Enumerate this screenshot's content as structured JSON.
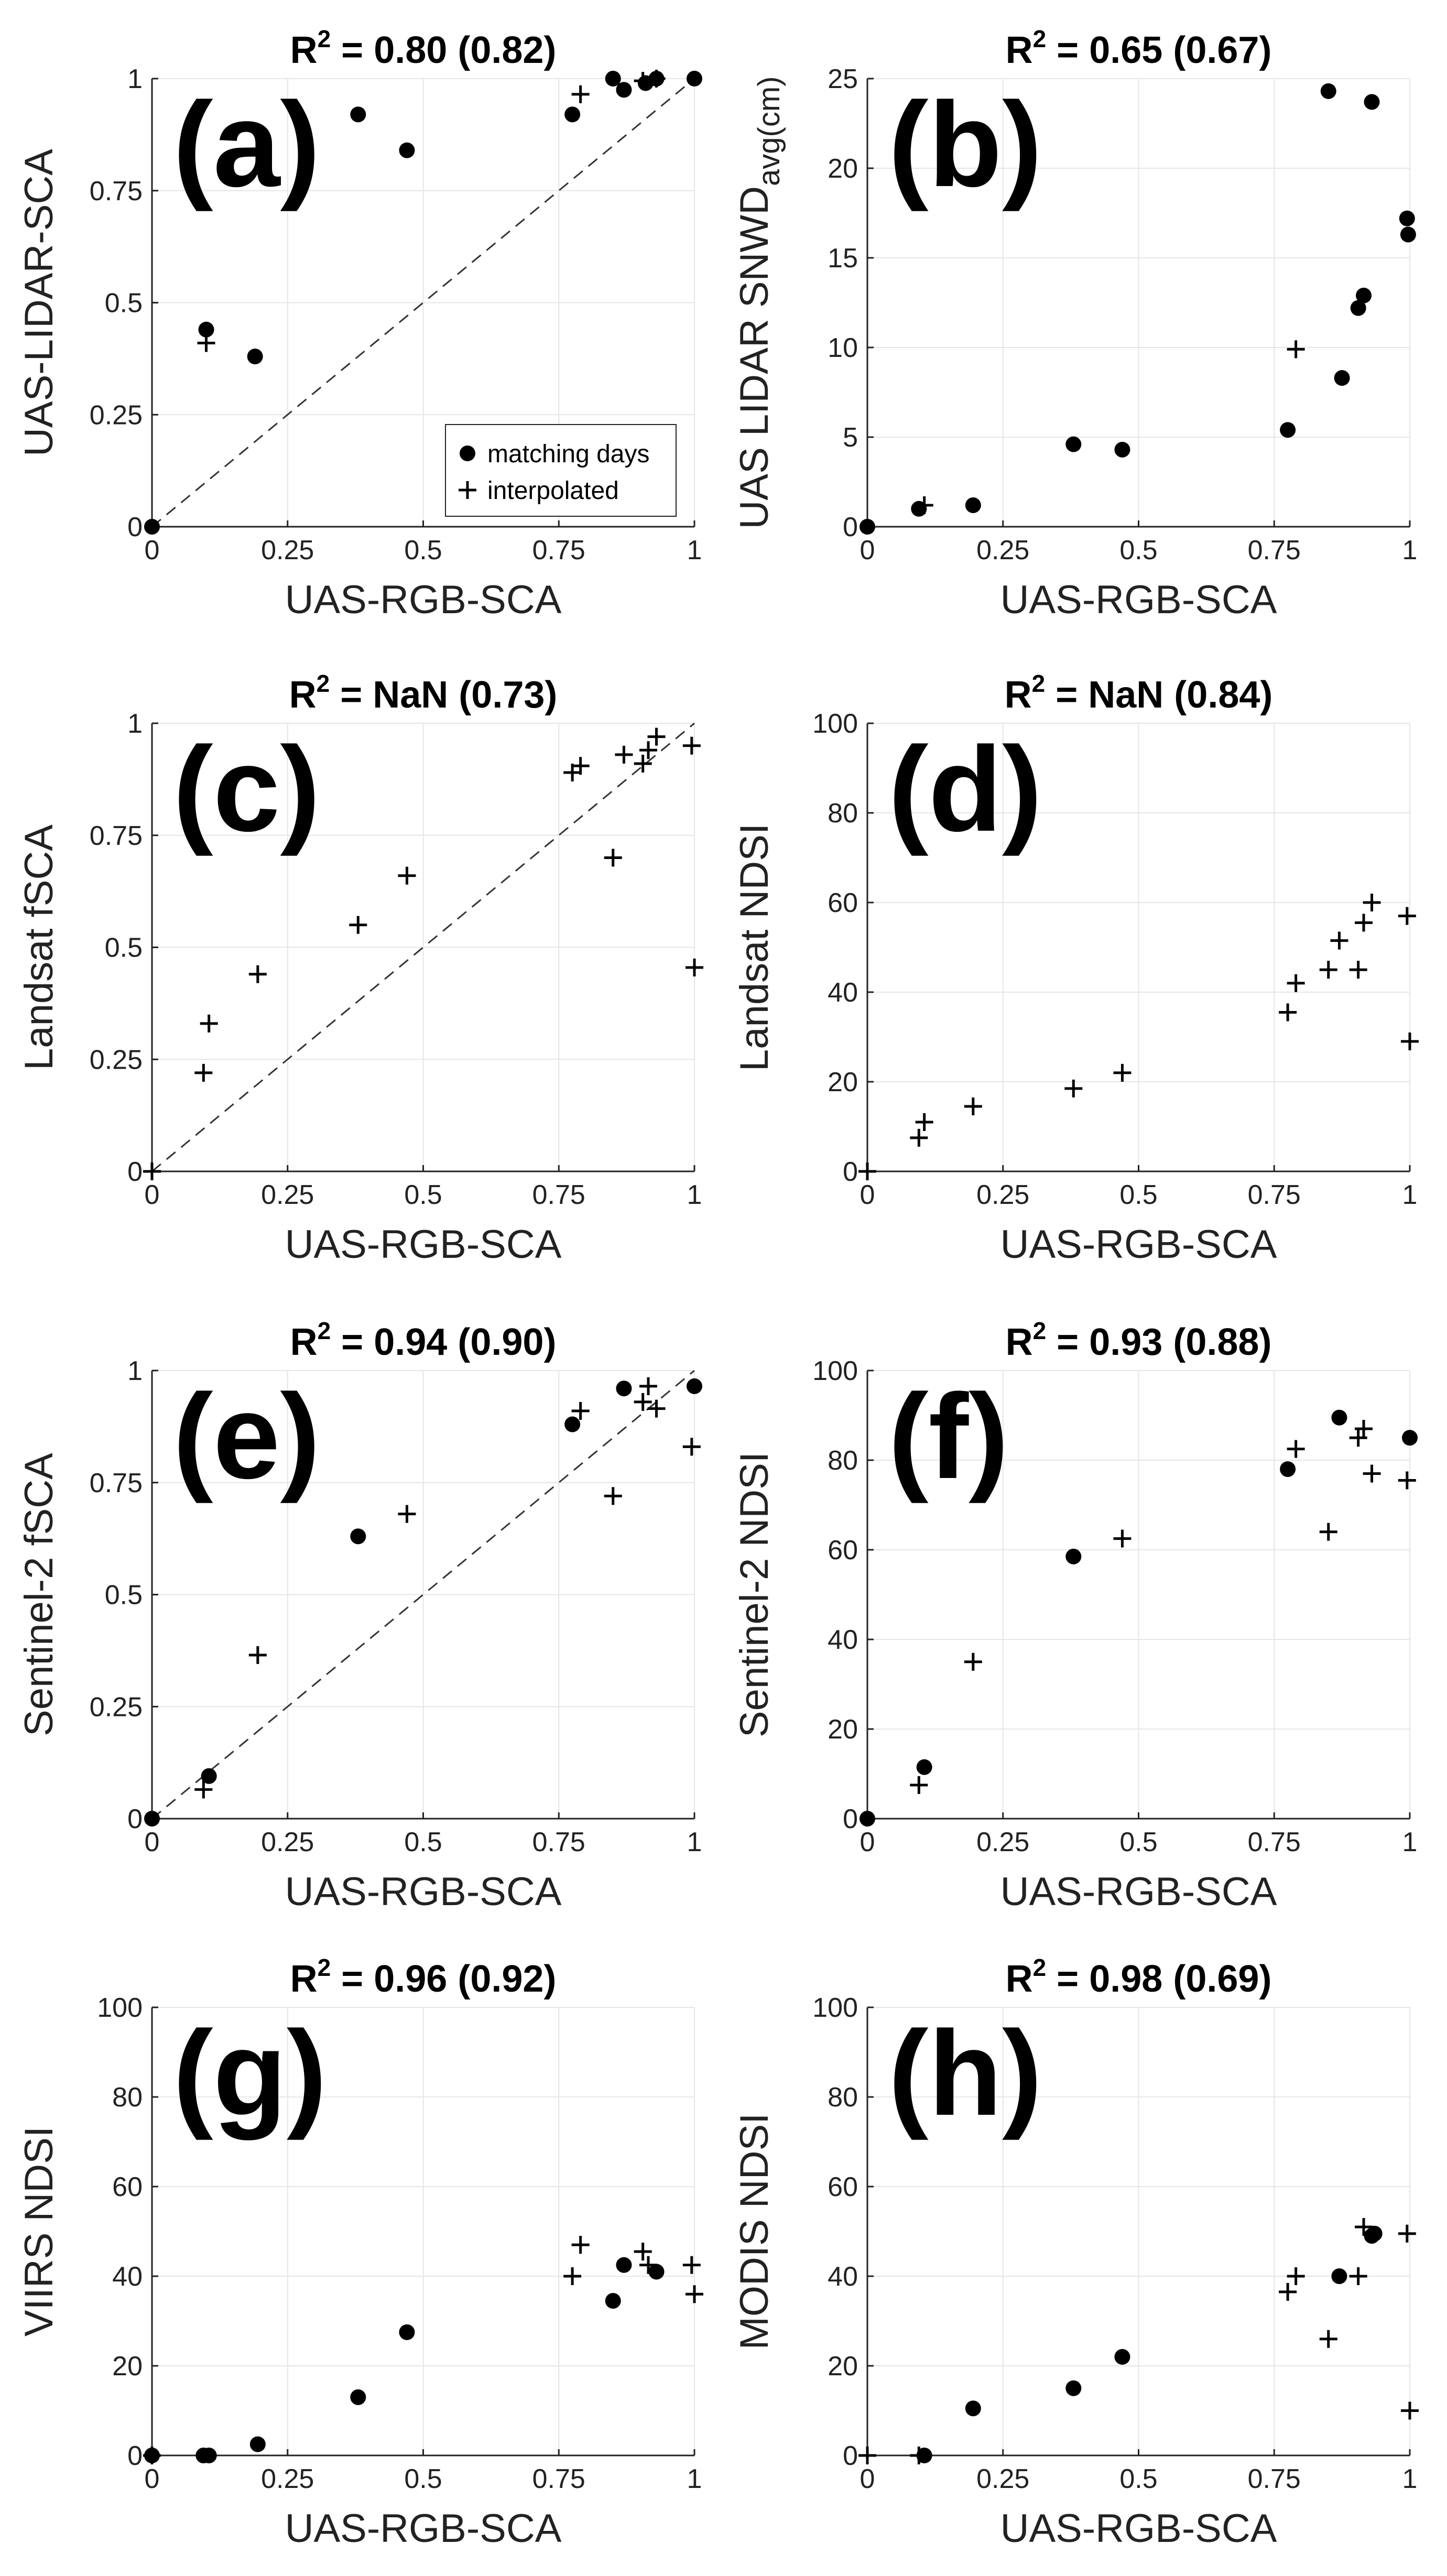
{
  "figure": {
    "legend": {
      "matching": "matching days",
      "interpolated": "interpolated",
      "panel": "a"
    }
  },
  "chart_data": [
    {
      "panel": "a",
      "type": "scatter",
      "letter": "(a)",
      "title_prefix": "R",
      "title_value": " = 0.80 (0.82)",
      "xlabel": "UAS-RGB-SCA",
      "ylabel": "UAS-LIDAR-SCA",
      "xlim": [
        0,
        1
      ],
      "ylim": [
        0,
        1
      ],
      "xticks": [
        0,
        0.25,
        0.5,
        0.75,
        1
      ],
      "xtick_labels": [
        "0",
        "0.25",
        "0.5",
        "0.75",
        "1"
      ],
      "yticks": [
        0,
        0.25,
        0.5,
        0.75,
        1
      ],
      "ytick_labels": [
        "0",
        "0.25",
        "0.5",
        "0.75",
        "1"
      ],
      "one_to_one": true,
      "series": [
        {
          "name": "matching days",
          "marker": "dot",
          "x": [
            0,
            0.1,
            0.19,
            0.38,
            0.47,
            0.775,
            0.85,
            0.87,
            0.91,
            0.93,
            1.0
          ],
          "y": [
            0,
            0.44,
            0.38,
            0.92,
            0.84,
            0.92,
            1.0,
            0.975,
            0.99,
            1.0,
            1.0
          ]
        },
        {
          "name": "interpolated",
          "marker": "plus",
          "x": [
            0.1,
            0.79,
            0.905,
            0.93
          ],
          "y": [
            0.41,
            0.965,
            0.995,
            1.0
          ]
        }
      ]
    },
    {
      "panel": "b",
      "type": "scatter",
      "letter": "(b)",
      "title_prefix": "R",
      "title_value": " = 0.65 (0.67)",
      "xlabel": "UAS-RGB-SCA",
      "ylabel": "UAS LIDAR SNWD",
      "ylabel_sub": "avg(cm)",
      "xlim": [
        0,
        1
      ],
      "ylim": [
        0,
        25
      ],
      "xticks": [
        0,
        0.25,
        0.5,
        0.75,
        1
      ],
      "xtick_labels": [
        "0",
        "0.25",
        "0.5",
        "0.75",
        "1"
      ],
      "yticks": [
        0,
        5,
        10,
        15,
        20,
        25
      ],
      "ytick_labels": [
        "0",
        "5",
        "10",
        "15",
        "20",
        "25"
      ],
      "one_to_one": false,
      "series": [
        {
          "name": "matching days",
          "marker": "dot",
          "x": [
            0,
            0.095,
            0.195,
            0.38,
            0.47,
            0.775,
            0.85,
            0.875,
            0.905,
            0.915,
            0.93,
            0.995,
            0.997
          ],
          "y": [
            0,
            1.0,
            1.2,
            4.6,
            4.3,
            5.4,
            24.3,
            8.3,
            12.2,
            12.9,
            23.7,
            17.2,
            16.3
          ]
        },
        {
          "name": "interpolated",
          "marker": "plus",
          "x": [
            0.105,
            0.79
          ],
          "y": [
            1.2,
            9.9
          ]
        }
      ]
    },
    {
      "panel": "c",
      "type": "scatter",
      "letter": "(c)",
      "title_prefix": "R",
      "title_value": " = NaN (0.73)",
      "xlabel": "UAS-RGB-SCA",
      "ylabel": "Landsat fSCA",
      "xlim": [
        0,
        1
      ],
      "ylim": [
        0,
        1
      ],
      "xticks": [
        0,
        0.25,
        0.5,
        0.75,
        1
      ],
      "xtick_labels": [
        "0",
        "0.25",
        "0.5",
        "0.75",
        "1"
      ],
      "yticks": [
        0,
        0.25,
        0.5,
        0.75,
        1
      ],
      "ytick_labels": [
        "0",
        "0.25",
        "0.5",
        "0.75",
        "1"
      ],
      "one_to_one": true,
      "series": [
        {
          "name": "interpolated",
          "marker": "plus",
          "x": [
            0,
            0.095,
            0.105,
            0.195,
            0.38,
            0.47,
            0.775,
            0.79,
            0.85,
            0.87,
            0.905,
            0.915,
            0.93,
            0.995,
            1.0
          ],
          "y": [
            0,
            0.22,
            0.33,
            0.44,
            0.55,
            0.66,
            0.89,
            0.905,
            0.7,
            0.93,
            0.91,
            0.94,
            0.97,
            0.95,
            0.455
          ]
        }
      ]
    },
    {
      "panel": "d",
      "type": "scatter",
      "letter": "(d)",
      "title_prefix": "R",
      "title_value": " = NaN (0.84)",
      "xlabel": "UAS-RGB-SCA",
      "ylabel": "Landsat NDSI",
      "xlim": [
        0,
        1
      ],
      "ylim": [
        0,
        100
      ],
      "xticks": [
        0,
        0.25,
        0.5,
        0.75,
        1
      ],
      "xtick_labels": [
        "0",
        "0.25",
        "0.5",
        "0.75",
        "1"
      ],
      "yticks": [
        0,
        20,
        40,
        60,
        80,
        100
      ],
      "ytick_labels": [
        "0",
        "20",
        "40",
        "60",
        "80",
        "100"
      ],
      "one_to_one": false,
      "series": [
        {
          "name": "interpolated",
          "marker": "plus",
          "x": [
            0,
            0.095,
            0.105,
            0.195,
            0.38,
            0.47,
            0.775,
            0.79,
            0.85,
            0.87,
            0.905,
            0.915,
            0.93,
            0.995,
            1.0
          ],
          "y": [
            0,
            7.5,
            11,
            14.5,
            18.5,
            22,
            35.5,
            42,
            45,
            51.5,
            45,
            55.5,
            60,
            57,
            29
          ]
        }
      ]
    },
    {
      "panel": "e",
      "type": "scatter",
      "letter": "(e)",
      "title_prefix": "R",
      "title_value": " = 0.94 (0.90)",
      "xlabel": "UAS-RGB-SCA",
      "ylabel": "Sentinel-2 fSCA",
      "xlim": [
        0,
        1
      ],
      "ylim": [
        0,
        1
      ],
      "xticks": [
        0,
        0.25,
        0.5,
        0.75,
        1
      ],
      "xtick_labels": [
        "0",
        "0.25",
        "0.5",
        "0.75",
        "1"
      ],
      "yticks": [
        0,
        0.25,
        0.5,
        0.75,
        1
      ],
      "ytick_labels": [
        "0",
        "0.25",
        "0.5",
        "0.75",
        "1"
      ],
      "one_to_one": true,
      "series": [
        {
          "name": "matching days",
          "marker": "dot",
          "x": [
            0,
            0.105,
            0.38,
            0.775,
            0.87,
            1.0
          ],
          "y": [
            0,
            0.095,
            0.63,
            0.88,
            0.96,
            0.965
          ]
        },
        {
          "name": "interpolated",
          "marker": "plus",
          "x": [
            0.095,
            0.195,
            0.47,
            0.79,
            0.85,
            0.905,
            0.915,
            0.93,
            0.995
          ],
          "y": [
            0.065,
            0.365,
            0.68,
            0.91,
            0.72,
            0.93,
            0.965,
            0.915,
            0.83
          ]
        }
      ]
    },
    {
      "panel": "f",
      "type": "scatter",
      "letter": "(f)",
      "title_prefix": "R",
      "title_value": " = 0.93 (0.88)",
      "xlabel": "UAS-RGB-SCA",
      "ylabel": "Sentinel-2 NDSI",
      "xlim": [
        0,
        1
      ],
      "ylim": [
        0,
        100
      ],
      "xticks": [
        0,
        0.25,
        0.5,
        0.75,
        1
      ],
      "xtick_labels": [
        "0",
        "0.25",
        "0.5",
        "0.75",
        "1"
      ],
      "yticks": [
        0,
        20,
        40,
        60,
        80,
        100
      ],
      "ytick_labels": [
        "0",
        "20",
        "40",
        "60",
        "80",
        "100"
      ],
      "one_to_one": false,
      "series": [
        {
          "name": "matching days",
          "marker": "dot",
          "x": [
            0,
            0.105,
            0.38,
            0.775,
            0.87,
            1.0
          ],
          "y": [
            0,
            11.5,
            58.5,
            78,
            89.5,
            85
          ]
        },
        {
          "name": "interpolated",
          "marker": "plus",
          "x": [
            0.095,
            0.195,
            0.47,
            0.79,
            0.85,
            0.905,
            0.915,
            0.93,
            0.995
          ],
          "y": [
            7.5,
            35,
            62.5,
            82.5,
            64,
            85,
            87,
            77,
            75.5
          ]
        }
      ]
    },
    {
      "panel": "g",
      "type": "scatter",
      "letter": "(g)",
      "title_prefix": "R",
      "title_value": " = 0.96 (0.92)",
      "xlabel": "UAS-RGB-SCA",
      "ylabel": "VIIRS NDSI",
      "xlim": [
        0,
        1
      ],
      "ylim": [
        0,
        100
      ],
      "xticks": [
        0,
        0.25,
        0.5,
        0.75,
        1
      ],
      "xtick_labels": [
        "0",
        "0.25",
        "0.5",
        "0.75",
        "1"
      ],
      "yticks": [
        0,
        20,
        40,
        60,
        80,
        100
      ],
      "ytick_labels": [
        "0",
        "20",
        "40",
        "60",
        "80",
        "100"
      ],
      "one_to_one": false,
      "series": [
        {
          "name": "matching days",
          "marker": "dot",
          "x": [
            0,
            0.095,
            0.105,
            0.195,
            0.38,
            0.47,
            0.85,
            0.87,
            0.93
          ],
          "y": [
            0,
            0,
            0,
            2.5,
            13,
            27.5,
            34.5,
            42.5,
            41
          ]
        },
        {
          "name": "interpolated",
          "marker": "plus",
          "x": [
            0,
            0.775,
            0.79,
            0.905,
            0.915,
            0.995,
            1.0
          ],
          "y": [
            0,
            40,
            47,
            45.5,
            42.5,
            42.5,
            36
          ]
        }
      ]
    },
    {
      "panel": "h",
      "type": "scatter",
      "letter": "(h)",
      "title_prefix": "R",
      "title_value": " = 0.98 (0.69)",
      "xlabel": "UAS-RGB-SCA",
      "ylabel": "MODIS NDSI",
      "xlim": [
        0,
        1
      ],
      "ylim": [
        0,
        100
      ],
      "xticks": [
        0,
        0.25,
        0.5,
        0.75,
        1
      ],
      "xtick_labels": [
        "0",
        "0.25",
        "0.5",
        "0.75",
        "1"
      ],
      "yticks": [
        0,
        20,
        40,
        60,
        80,
        100
      ],
      "ytick_labels": [
        "0",
        "20",
        "40",
        "60",
        "80",
        "100"
      ],
      "one_to_one": false,
      "series": [
        {
          "name": "matching days",
          "marker": "dot",
          "x": [
            0.105,
            0.195,
            0.38,
            0.47,
            0.87,
            0.93,
            0.935
          ],
          "y": [
            0,
            10.5,
            15,
            22,
            40,
            49,
            49.5
          ]
        },
        {
          "name": "interpolated",
          "marker": "plus",
          "x": [
            0,
            0.095,
            0.775,
            0.79,
            0.85,
            0.905,
            0.915,
            0.995,
            1.0
          ],
          "y": [
            0,
            0,
            36.5,
            40,
            26,
            40,
            51,
            49.5,
            10
          ]
        }
      ]
    }
  ]
}
